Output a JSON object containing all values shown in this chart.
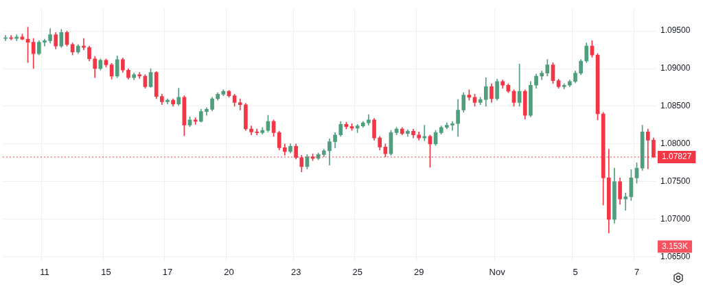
{
  "chart_data": {
    "type": "candlestick",
    "categories": [
      null,
      null,
      null,
      null,
      null,
      null,
      null,
      "11",
      null,
      null,
      null,
      null,
      null,
      null,
      null,
      null,
      null,
      null,
      "15",
      null,
      null,
      null,
      null,
      null,
      null,
      null,
      null,
      null,
      null,
      "17",
      null,
      null,
      null,
      null,
      null,
      null,
      null,
      null,
      null,
      null,
      "20",
      null,
      null,
      null,
      null,
      null,
      null,
      null,
      null,
      null,
      null,
      null,
      "23",
      null,
      null,
      null,
      null,
      null,
      null,
      null,
      null,
      null,
      null,
      "25",
      null,
      null,
      null,
      null,
      null,
      null,
      null,
      null,
      null,
      null,
      "29",
      null,
      null,
      null,
      null,
      null,
      null,
      null,
      null,
      null,
      null,
      null,
      null,
      null,
      "Nov",
      null,
      null,
      null,
      null,
      null,
      null,
      null,
      null,
      null,
      null,
      null,
      null,
      null,
      "5",
      null,
      null,
      null,
      null,
      null,
      null,
      null,
      null,
      null,
      null,
      "7",
      null,
      null,
      null
    ],
    "ohlc": [
      [
        1.094,
        1.0944,
        1.0937,
        1.0941
      ],
      [
        1.0941,
        1.0944,
        1.0938,
        1.094
      ],
      [
        1.094,
        1.0945,
        1.0937,
        1.0942
      ],
      [
        1.0942,
        1.0946,
        1.0938,
        1.0939
      ],
      [
        1.0939,
        1.0955,
        1.0908,
        1.0935
      ],
      [
        1.0935,
        1.094,
        1.09,
        1.092
      ],
      [
        1.092,
        1.0937,
        1.0918,
        1.0935
      ],
      [
        1.0935,
        1.0939,
        1.093,
        1.0937
      ],
      [
        1.0937,
        1.0953,
        1.0934,
        1.0945
      ],
      [
        1.0945,
        1.0948,
        1.0926,
        1.093
      ],
      [
        1.093,
        1.0952,
        1.0928,
        1.0948
      ],
      [
        1.0948,
        1.095,
        1.093,
        1.0932
      ],
      [
        1.0932,
        1.0934,
        1.0918,
        1.0922
      ],
      [
        1.0922,
        1.0932,
        1.092,
        1.093
      ],
      [
        1.093,
        1.094,
        1.0925,
        1.0928
      ],
      [
        1.0928,
        1.093,
        1.091,
        1.0913
      ],
      [
        1.0913,
        1.0916,
        1.0888,
        1.09
      ],
      [
        1.09,
        1.0913,
        1.0898,
        1.0911
      ],
      [
        1.0911,
        1.0913,
        1.0902,
        1.0905
      ],
      [
        1.0905,
        1.0907,
        1.0886,
        1.089
      ],
      [
        1.089,
        1.0917,
        1.0888,
        1.0912
      ],
      [
        1.0912,
        1.0914,
        1.0895,
        1.0898
      ],
      [
        1.0898,
        1.09,
        1.0886,
        1.0888
      ],
      [
        1.0888,
        1.0894,
        1.0885,
        1.0892
      ],
      [
        1.0892,
        1.0895,
        1.0887,
        1.089
      ],
      [
        1.089,
        1.0892,
        1.0874,
        1.0876
      ],
      [
        1.0876,
        1.09,
        1.0875,
        1.0895
      ],
      [
        1.0895,
        1.0896,
        1.086,
        1.0863
      ],
      [
        1.0863,
        1.0866,
        1.0852,
        1.0856
      ],
      [
        1.0856,
        1.086,
        1.0853,
        1.0858
      ],
      [
        1.0858,
        1.086,
        1.085,
        1.0853
      ],
      [
        1.0853,
        1.0874,
        1.0851,
        1.0862
      ],
      [
        1.0862,
        1.0864,
        1.0811,
        1.0825
      ],
      [
        1.0825,
        1.0836,
        1.0823,
        1.0832
      ],
      [
        1.0832,
        1.0835,
        1.0826,
        1.083
      ],
      [
        1.083,
        1.0846,
        1.0829,
        1.0843
      ],
      [
        1.0843,
        1.0848,
        1.0838,
        1.0846
      ],
      [
        1.0846,
        1.0862,
        1.0844,
        1.086
      ],
      [
        1.086,
        1.0868,
        1.0858,
        1.0866
      ],
      [
        1.0866,
        1.0872,
        1.0864,
        1.087
      ],
      [
        1.087,
        1.0871,
        1.0862,
        1.0864
      ],
      [
        1.0864,
        1.0866,
        1.085,
        1.0855
      ],
      [
        1.0855,
        1.086,
        1.0845,
        1.0852
      ],
      [
        1.0852,
        1.0854,
        1.0818,
        1.082
      ],
      [
        1.082,
        1.0824,
        1.0812,
        1.0816
      ],
      [
        1.0816,
        1.082,
        1.0812,
        1.0815
      ],
      [
        1.0815,
        1.0822,
        1.0813,
        1.0818
      ],
      [
        1.0818,
        1.0838,
        1.0816,
        1.083
      ],
      [
        1.083,
        1.0832,
        1.081,
        1.0815
      ],
      [
        1.0815,
        1.0817,
        1.0792,
        1.0795
      ],
      [
        1.0795,
        1.08,
        1.0785,
        1.079
      ],
      [
        1.079,
        1.08,
        1.0788,
        1.0797
      ],
      [
        1.0797,
        1.08,
        1.078,
        1.0782
      ],
      [
        1.0782,
        1.0785,
        1.0763,
        1.077
      ],
      [
        1.077,
        1.0786,
        1.0767,
        1.0783
      ],
      [
        1.0783,
        1.0787,
        1.0778,
        1.0781
      ],
      [
        1.0781,
        1.0788,
        1.0779,
        1.0786
      ],
      [
        1.0786,
        1.0793,
        1.0783,
        1.0791
      ],
      [
        1.0791,
        1.0807,
        1.0772,
        1.0803
      ],
      [
        1.0803,
        1.0815,
        1.0795,
        1.0812
      ],
      [
        1.0812,
        1.083,
        1.081,
        1.0826
      ],
      [
        1.0826,
        1.0829,
        1.082,
        1.0823
      ],
      [
        1.0823,
        1.0827,
        1.0818,
        1.0821
      ],
      [
        1.0821,
        1.0826,
        1.0815,
        1.0824
      ],
      [
        1.0824,
        1.083,
        1.0822,
        1.0828
      ],
      [
        1.0828,
        1.0839,
        1.0825,
        1.0832
      ],
      [
        1.0832,
        1.0834,
        1.0805,
        1.0808
      ],
      [
        1.0808,
        1.081,
        1.0792,
        1.0796
      ],
      [
        1.0796,
        1.08,
        1.0783,
        1.0787
      ],
      [
        1.0787,
        1.0818,
        1.0785,
        1.0815
      ],
      [
        1.0815,
        1.0822,
        1.0812,
        1.082
      ],
      [
        1.082,
        1.0822,
        1.0812,
        1.0814
      ],
      [
        1.0814,
        1.0819,
        1.081,
        1.0817
      ],
      [
        1.0817,
        1.082,
        1.0808,
        1.0812
      ],
      [
        1.0812,
        1.0816,
        1.0805,
        1.0808
      ],
      [
        1.0808,
        1.0825,
        1.0804,
        1.081
      ],
      [
        1.081,
        1.0812,
        1.0769,
        1.08
      ],
      [
        1.08,
        1.0818,
        1.0798,
        1.0815
      ],
      [
        1.0815,
        1.0824,
        1.0813,
        1.0822
      ],
      [
        1.0822,
        1.0828,
        1.082,
        1.0825
      ],
      [
        1.0825,
        1.083,
        1.0818,
        1.0827
      ],
      [
        1.0827,
        1.0859,
        1.081,
        1.0845
      ],
      [
        1.0845,
        1.0868,
        1.0842,
        1.0865
      ],
      [
        1.0865,
        1.0872,
        1.0858,
        1.0862
      ],
      [
        1.0862,
        1.0866,
        1.085,
        1.0855
      ],
      [
        1.0855,
        1.0862,
        1.0852,
        1.0859
      ],
      [
        1.0859,
        1.0888,
        1.085,
        1.0876
      ],
      [
        1.0876,
        1.088,
        1.0855,
        1.086
      ],
      [
        1.086,
        1.0886,
        1.0858,
        1.0883
      ],
      [
        1.0883,
        1.0885,
        1.0874,
        1.0878
      ],
      [
        1.0878,
        1.088,
        1.0868,
        1.087
      ],
      [
        1.087,
        1.0872,
        1.085,
        1.0855
      ],
      [
        1.0855,
        1.0906,
        1.085,
        1.087
      ],
      [
        1.087,
        1.0872,
        1.0833,
        1.0838
      ],
      [
        1.0838,
        1.0883,
        1.0836,
        1.0878
      ],
      [
        1.0878,
        1.0893,
        1.0874,
        1.089
      ],
      [
        1.089,
        1.0897,
        1.0885,
        1.0894
      ],
      [
        1.0894,
        1.0912,
        1.089,
        1.0905
      ],
      [
        1.0905,
        1.0908,
        1.088,
        1.0884
      ],
      [
        1.0884,
        1.0886,
        1.0874,
        1.0876
      ],
      [
        1.0876,
        1.088,
        1.0873,
        1.0878
      ],
      [
        1.0878,
        1.0885,
        1.0876,
        1.0883
      ],
      [
        1.0883,
        1.0897,
        1.0881,
        1.0894
      ],
      [
        1.0894,
        1.0912,
        1.0892,
        1.091
      ],
      [
        1.091,
        1.0934,
        1.0908,
        1.093
      ],
      [
        1.093,
        1.0937,
        1.0915,
        1.0918
      ],
      [
        1.0918,
        1.092,
        1.0832,
        1.084
      ],
      [
        1.084,
        1.0842,
        1.0719,
        1.0755
      ],
      [
        1.0755,
        1.0793,
        1.0682,
        1.07
      ],
      [
        1.07,
        1.0768,
        1.0695,
        1.075
      ],
      [
        1.075,
        1.0755,
        1.072,
        1.0727
      ],
      [
        1.0727,
        1.0735,
        1.0712,
        1.073
      ],
      [
        1.073,
        1.0766,
        1.0725,
        1.0755
      ],
      [
        1.0755,
        1.0775,
        1.0748,
        1.0768
      ],
      [
        1.0768,
        1.0825,
        1.0765,
        1.0816
      ],
      [
        1.0816,
        1.082,
        1.0767,
        1.0805
      ],
      [
        1.0805,
        1.0808,
        1.0782,
        1.07827
      ]
    ],
    "ylim": [
      1.0644,
      1.0979
    ],
    "yticks": [
      {
        "value": 1.065,
        "label": "1.06500"
      },
      {
        "value": 1.07,
        "label": "1.07000"
      },
      {
        "value": 1.075,
        "label": "1.07500"
      },
      {
        "value": 1.08,
        "label": "1.08000"
      },
      {
        "value": 1.085,
        "label": "1.08500"
      },
      {
        "value": 1.09,
        "label": "1.09000"
      },
      {
        "value": 1.095,
        "label": "1.09500"
      }
    ],
    "grid": true,
    "ref_lines": [
      {
        "axis": "y",
        "value": 1.07827,
        "label": "1.07827",
        "color": "#f23645",
        "line_style": "dotted"
      }
    ],
    "annotations": [
      "3.153K"
    ]
  }
}
